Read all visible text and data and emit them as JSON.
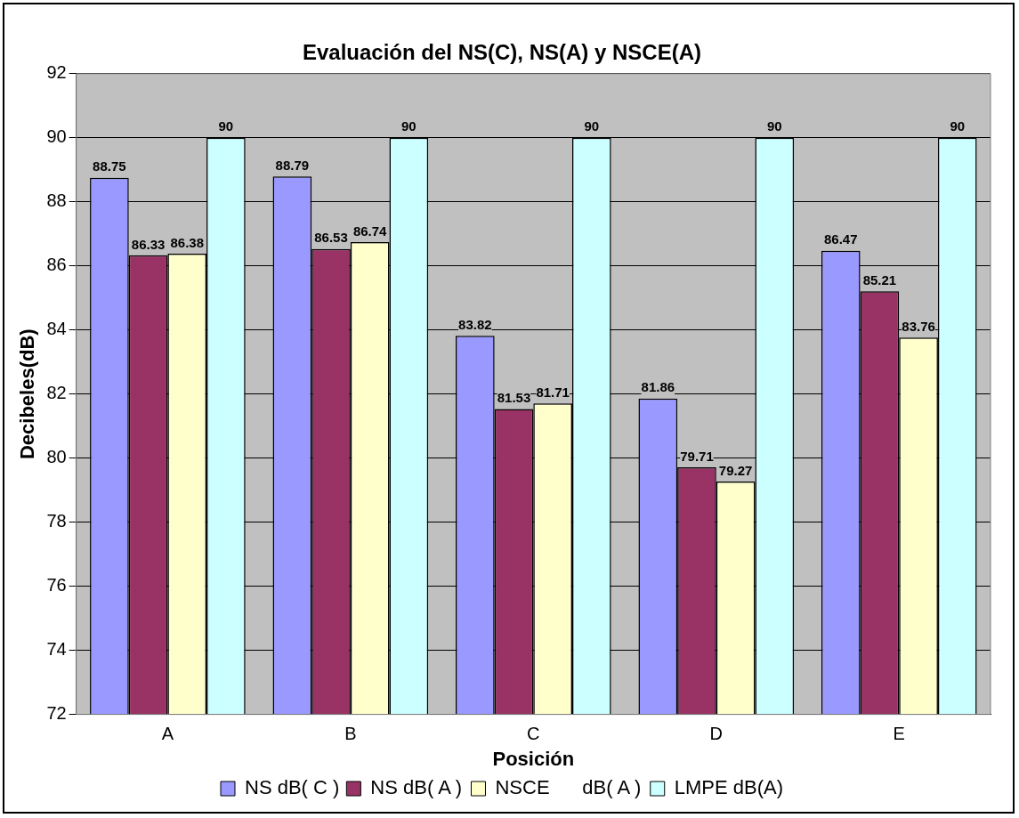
{
  "chart_data": {
    "type": "bar",
    "title": "Evaluación del NS(C), NS(A) y NSCE(A)",
    "xlabel": "Posición",
    "ylabel": "Decibeles(dB)",
    "categories": [
      "A",
      "B",
      "C",
      "D",
      "E"
    ],
    "series": [
      {
        "name": "NS dB( C )",
        "color": "#9999ff",
        "values": [
          88.75,
          88.79,
          83.82,
          81.86,
          86.47
        ]
      },
      {
        "name": "NS dB( A )",
        "color": "#993366",
        "values": [
          86.33,
          86.53,
          81.53,
          79.71,
          85.21
        ]
      },
      {
        "name": "NSCE      dB( A )",
        "color": "#ffffcc",
        "values": [
          86.38,
          86.74,
          81.71,
          79.27,
          83.76
        ]
      },
      {
        "name": "LMPE dB(A)",
        "color": "#ccffff",
        "values": [
          90,
          90,
          90,
          90,
          90
        ]
      }
    ],
    "ylim": [
      72,
      92
    ],
    "yticks": [
      72,
      74,
      76,
      78,
      80,
      82,
      84,
      86,
      88,
      90,
      92
    ],
    "grid": "y",
    "legend": "bottom",
    "data_labels": true
  }
}
